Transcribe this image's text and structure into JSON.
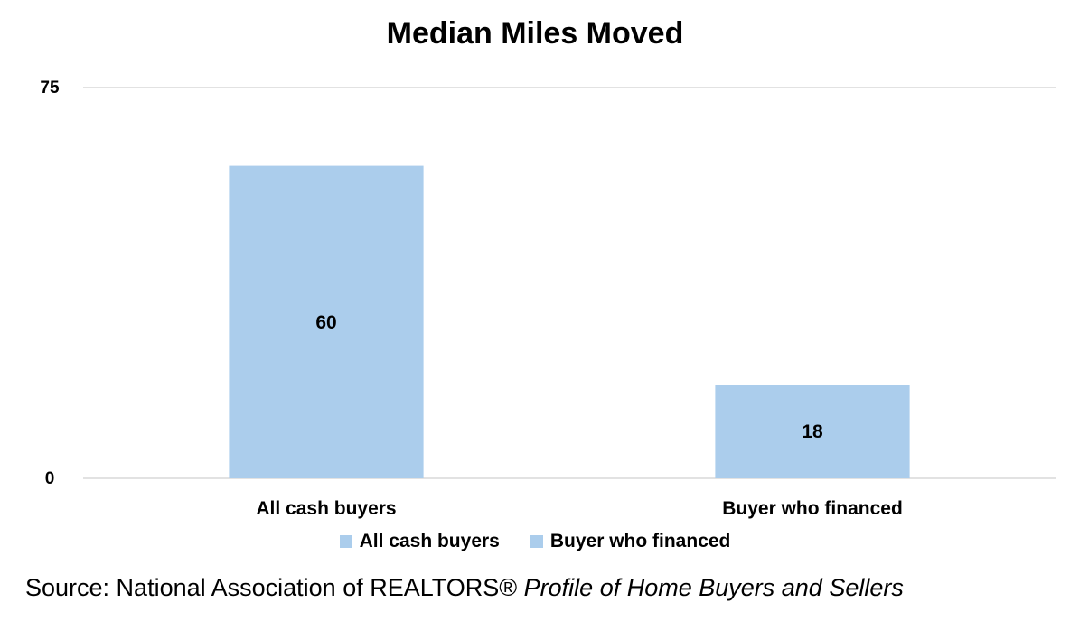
{
  "chart_data": {
    "type": "bar",
    "title": "Median Miles Moved",
    "categories": [
      "All cash buyers",
      "Buyer who financed"
    ],
    "values": [
      60,
      18
    ],
    "ylim": [
      0,
      75
    ],
    "yticks": [
      "0",
      "75"
    ],
    "legend": [
      "All cash buyers",
      "Buyer who financed"
    ],
    "legend_position": "bottom",
    "bar_color": "#abcdec",
    "grid": true
  },
  "source": {
    "prefix": "Source: National Association of REALTORS® ",
    "title": "Profile of Home Buyers and Sellers"
  }
}
